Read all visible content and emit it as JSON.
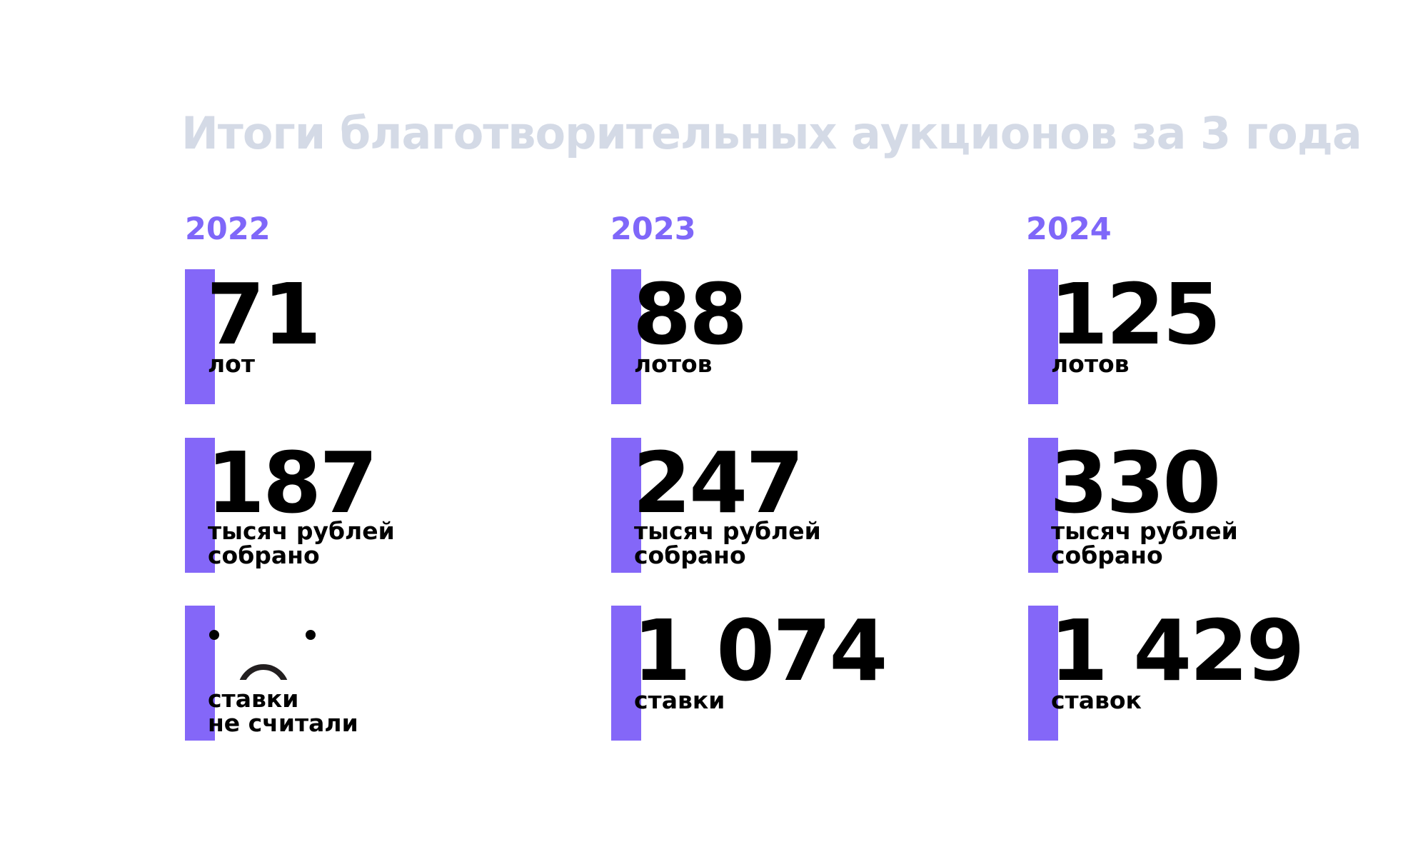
{
  "title": "Итоги благотворительных аукционов за 3 года",
  "accent_color": "#8467f8",
  "title_color": "#d4dae6",
  "columns": [
    {
      "year": "2022",
      "lots": {
        "value": "71",
        "label": "лот"
      },
      "money": {
        "value": "187",
        "label_line1": "тысяч рублей",
        "label_line2": "собрано"
      },
      "bids": {
        "icon": "sad-face-icon",
        "label_line1": "ставки",
        "label_line2": "не считали"
      }
    },
    {
      "year": "2023",
      "lots": {
        "value": "88",
        "label": "лотов"
      },
      "money": {
        "value": "247",
        "label_line1": "тысяч рублей",
        "label_line2": "собрано"
      },
      "bids": {
        "value": "1 074",
        "label": "ставки"
      }
    },
    {
      "year": "2024",
      "lots": {
        "value": "125",
        "label": "лотов"
      },
      "money": {
        "value": "330",
        "label_line1": "тысяч рублей",
        "label_line2": "собрано"
      },
      "bids": {
        "value": "1 429",
        "label": "ставок"
      }
    }
  ]
}
